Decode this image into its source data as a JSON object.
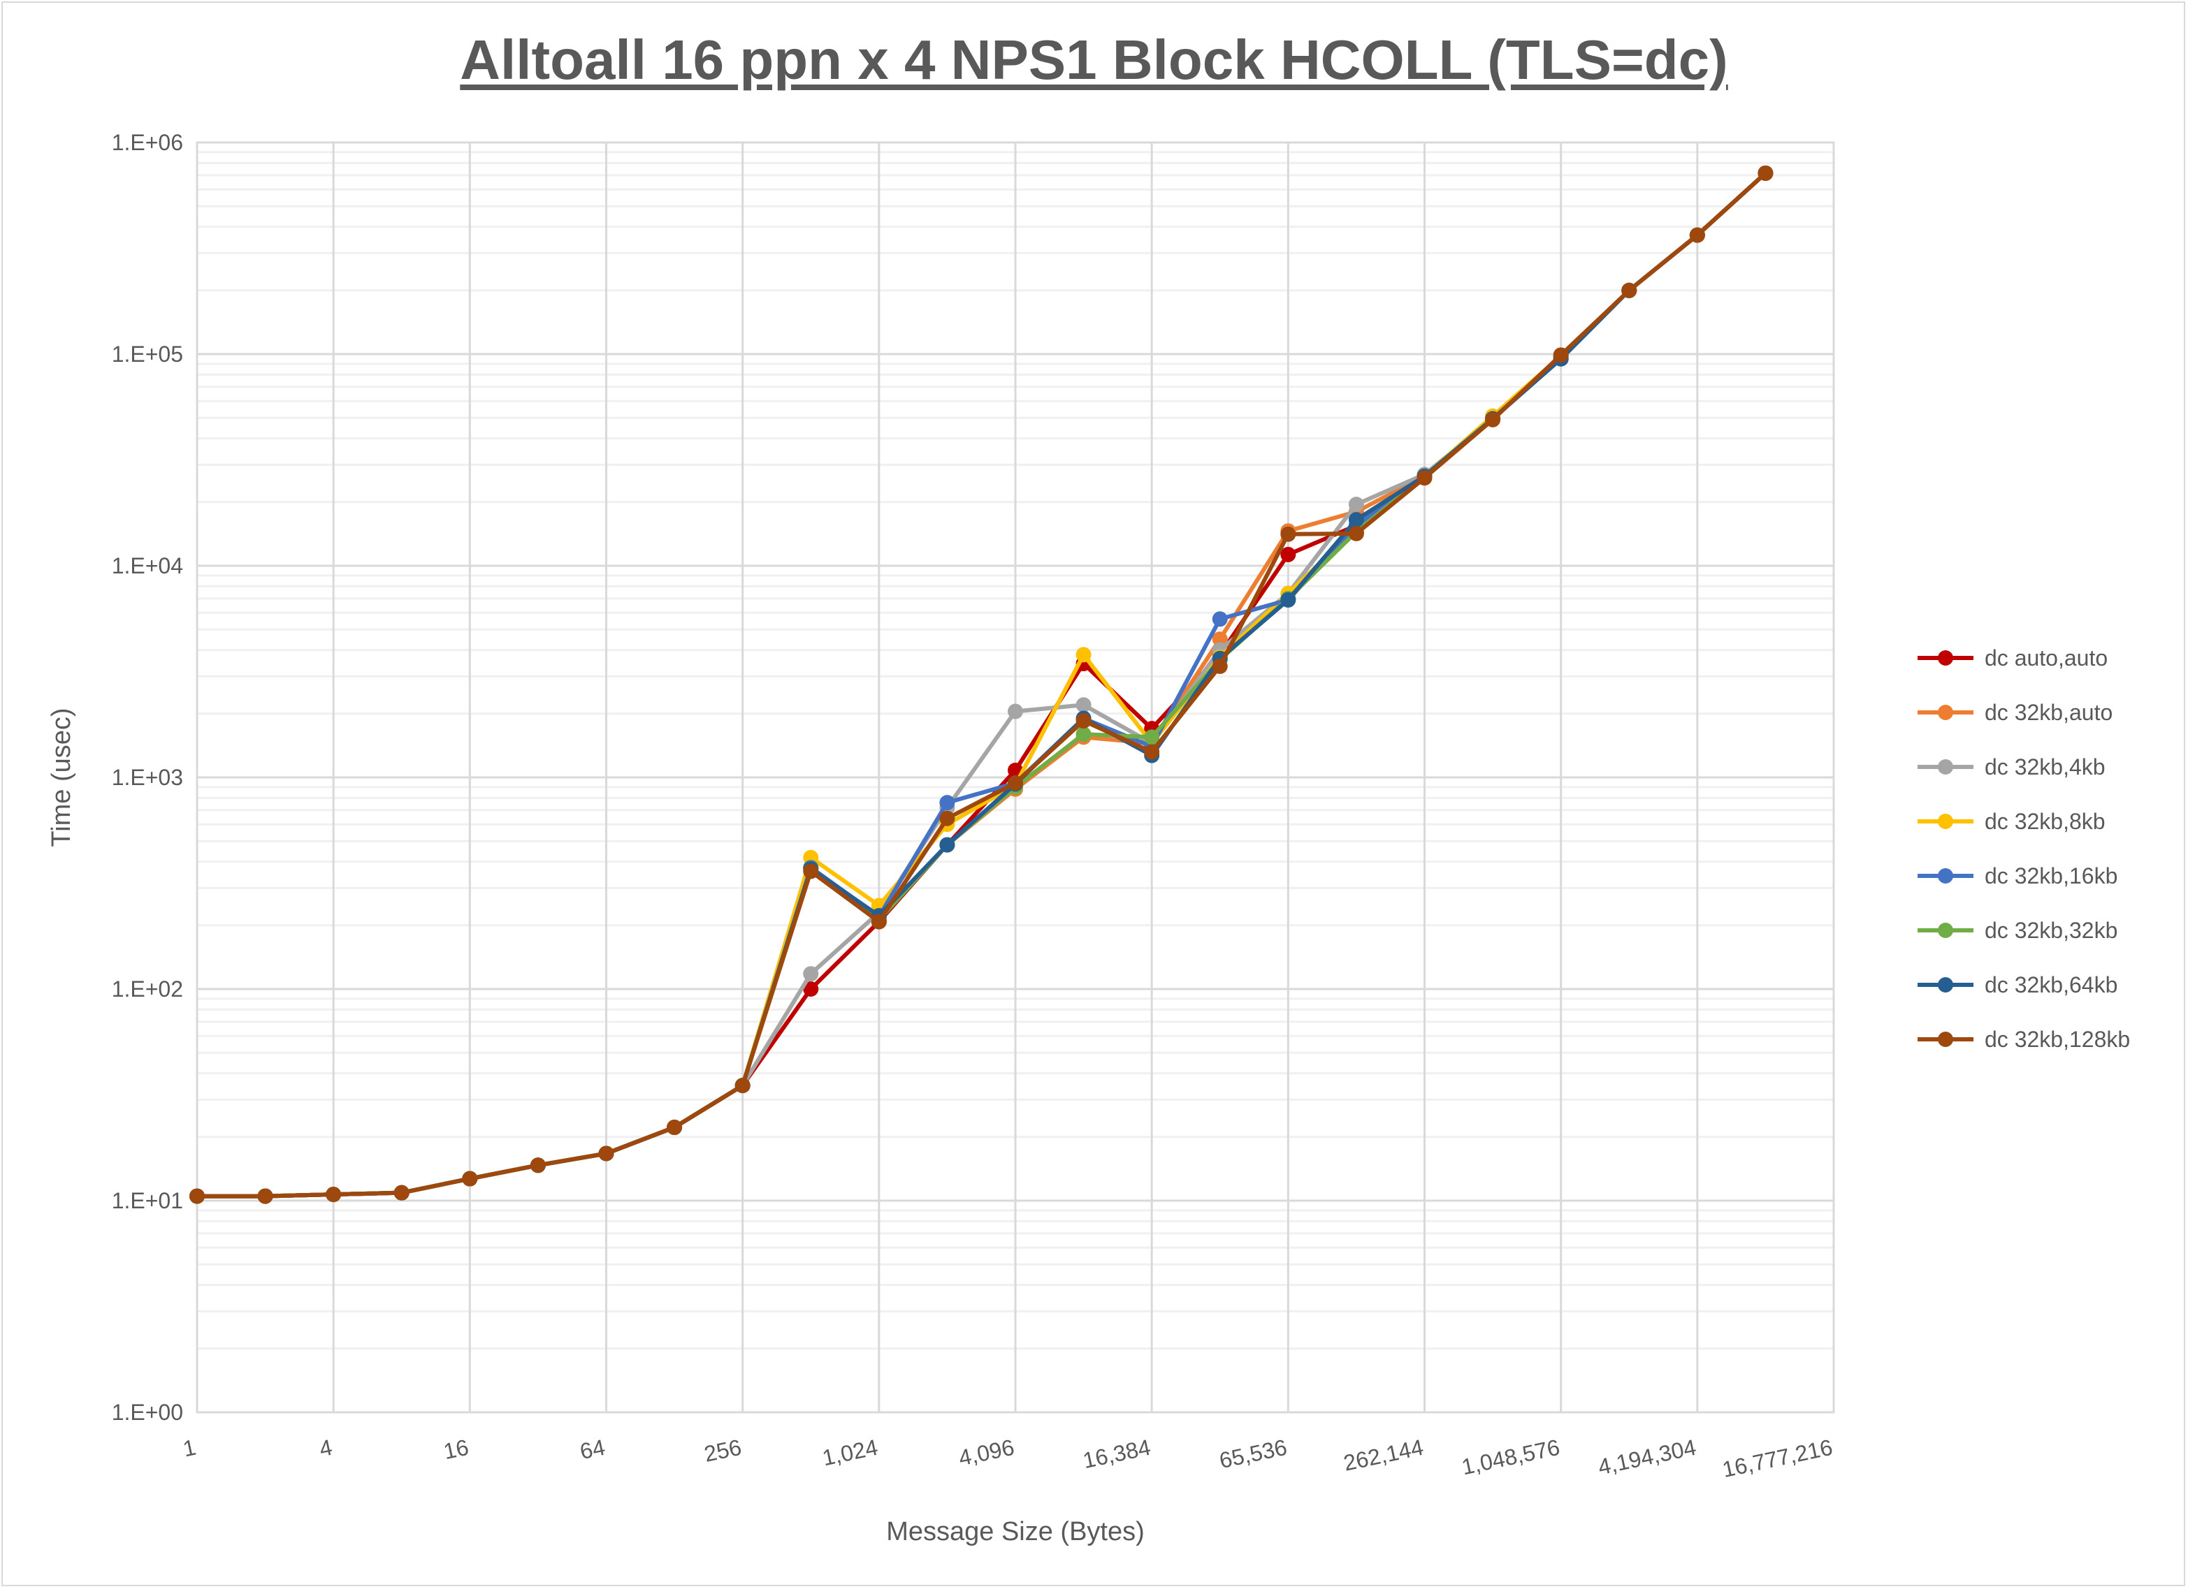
{
  "chart_data": {
    "type": "line",
    "title": "Alltoall 16 ppn x 4 NPS1 Block HCOLL (TLS=dc)",
    "xlabel": "Message Size (Bytes)",
    "ylabel": "Time (usec)",
    "xscale": "log2",
    "yscale": "log10",
    "xlim": [
      1,
      16777216
    ],
    "ylim": [
      1,
      1000000
    ],
    "x_tick_labels": [
      "1",
      "4",
      "16",
      "64",
      "256",
      "1,024",
      "4,096",
      "16,384",
      "65,536",
      "262,144",
      "1,048,576",
      "4,194,304",
      "16,777,216"
    ],
    "y_tick_labels": [
      "1.E+00",
      "1.E+01",
      "1.E+02",
      "1.E+03",
      "1.E+04",
      "1.E+05",
      "1.E+06"
    ],
    "grid": true,
    "legend": "right",
    "x": [
      1,
      2,
      4,
      8,
      16,
      32,
      64,
      128,
      256,
      512,
      1024,
      2048,
      4096,
      8192,
      16384,
      32768,
      65536,
      131072,
      262144,
      524288,
      1048576,
      2097152,
      4194304,
      8388608
    ],
    "series": [
      {
        "name": "dc auto,auto",
        "color": "#C00000",
        "values": [
          10.5,
          10.5,
          10.7,
          10.9,
          12.7,
          14.7,
          16.7,
          22.2,
          35,
          100,
          208,
          480,
          1080,
          3450,
          1700,
          3800,
          11300,
          15500,
          26500,
          49500,
          98000,
          200000,
          365000,
          716000
        ]
      },
      {
        "name": "dc 32kb,auto",
        "color": "#ED7D31",
        "values": [
          10.5,
          10.5,
          10.7,
          10.9,
          12.7,
          14.7,
          16.7,
          22.2,
          35,
          375,
          215,
          480,
          880,
          1550,
          1450,
          4500,
          14600,
          18000,
          26500,
          49500,
          98000,
          200000,
          365000,
          716000
        ]
      },
      {
        "name": "dc 32kb,4kb",
        "color": "#A5A5A5",
        "values": [
          10.5,
          10.5,
          10.7,
          10.9,
          12.7,
          14.7,
          16.7,
          22.2,
          35,
          118,
          230,
          720,
          2050,
          2200,
          1450,
          4000,
          7400,
          19500,
          27000,
          49500,
          98000,
          200000,
          365000,
          716000
        ]
      },
      {
        "name": "dc 32kb,8kb",
        "color": "#FFC000",
        "values": [
          10.5,
          10.5,
          10.7,
          10.9,
          12.7,
          14.7,
          16.7,
          22.2,
          35,
          418,
          248,
          600,
          920,
          3800,
          1450,
          3700,
          7400,
          15000,
          26500,
          51000,
          98000,
          200000,
          365000,
          716000
        ]
      },
      {
        "name": "dc 32kb,16kb",
        "color": "#4472C4",
        "values": [
          10.5,
          10.5,
          10.7,
          10.9,
          12.7,
          14.7,
          16.7,
          22.2,
          35,
          375,
          220,
          760,
          940,
          1900,
          1400,
          5600,
          6900,
          15500,
          26500,
          49500,
          95000,
          200000,
          365000,
          716000
        ]
      },
      {
        "name": "dc 32kb,32kb",
        "color": "#70AD47",
        "values": [
          10.5,
          10.5,
          10.7,
          10.9,
          12.7,
          14.7,
          16.7,
          22.2,
          35,
          372,
          212,
          480,
          900,
          1600,
          1550,
          3600,
          7000,
          14500,
          26500,
          49500,
          97000,
          200000,
          365000,
          716000
        ]
      },
      {
        "name": "dc 32kb,64kb",
        "color": "#255E91",
        "values": [
          10.5,
          10.5,
          10.7,
          10.9,
          12.7,
          14.7,
          16.7,
          22.2,
          35,
          370,
          222,
          480,
          930,
          1900,
          1270,
          3650,
          6900,
          16500,
          26500,
          49500,
          95000,
          200000,
          365000,
          716000
        ]
      },
      {
        "name": "dc 32kb,128kb",
        "color": "#9E480E",
        "values": [
          10.5,
          10.5,
          10.7,
          10.9,
          12.7,
          14.7,
          16.7,
          22.2,
          35,
          360,
          208,
          640,
          940,
          1850,
          1320,
          3350,
          14100,
          14200,
          26000,
          49000,
          99000,
          200000,
          365000,
          716000
        ]
      }
    ]
  }
}
